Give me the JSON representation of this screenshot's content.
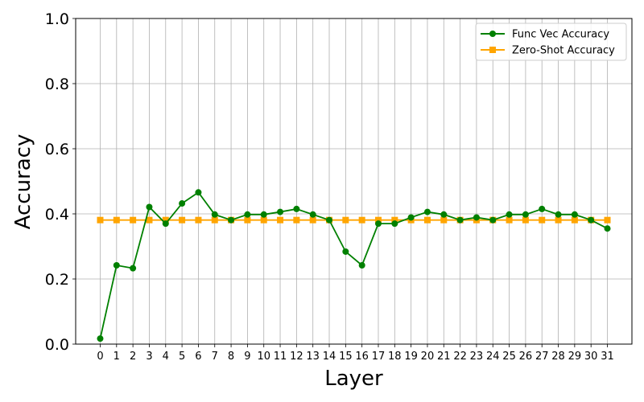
{
  "chart_data": {
    "type": "line",
    "xlabel": "Layer",
    "ylabel": "Accuracy",
    "x": [
      0,
      1,
      2,
      3,
      4,
      5,
      6,
      7,
      8,
      9,
      10,
      11,
      12,
      13,
      14,
      15,
      16,
      17,
      18,
      19,
      20,
      21,
      22,
      23,
      24,
      25,
      26,
      27,
      28,
      29,
      30,
      31
    ],
    "xlim": [
      -1.5,
      32.5
    ],
    "ylim": [
      0.0,
      1.0
    ],
    "yticks": [
      "0.0",
      "0.2",
      "0.4",
      "0.6",
      "0.8",
      "1.0"
    ],
    "grid": true,
    "legend_position": "top-right",
    "series": [
      {
        "name": "Func Vec Accuracy",
        "color": "#008000",
        "marker": "circle",
        "values": [
          0.017,
          0.242,
          0.233,
          0.421,
          0.37,
          0.432,
          0.466,
          0.398,
          0.381,
          0.398,
          0.398,
          0.406,
          0.415,
          0.398,
          0.381,
          0.284,
          0.242,
          0.37,
          0.37,
          0.389,
          0.406,
          0.398,
          0.381,
          0.389,
          0.381,
          0.398,
          0.398,
          0.415,
          0.398,
          0.398,
          0.381,
          0.355
        ]
      },
      {
        "name": "Zero-Shot Accuracy",
        "color": "#FFA500",
        "marker": "square",
        "values": [
          0.381,
          0.381,
          0.381,
          0.381,
          0.381,
          0.381,
          0.381,
          0.381,
          0.381,
          0.381,
          0.381,
          0.381,
          0.381,
          0.381,
          0.381,
          0.381,
          0.381,
          0.381,
          0.381,
          0.381,
          0.381,
          0.381,
          0.381,
          0.381,
          0.381,
          0.381,
          0.381,
          0.381,
          0.381,
          0.381,
          0.381,
          0.381
        ]
      }
    ]
  }
}
